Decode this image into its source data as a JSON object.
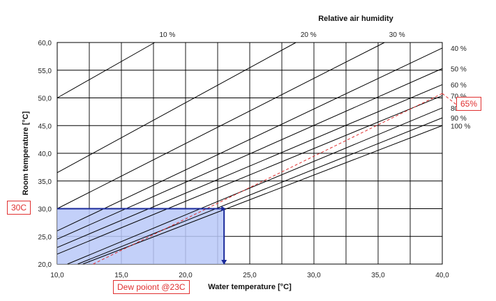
{
  "chart_data": {
    "type": "line",
    "title": "Relative air humidity",
    "xlabel": "Water temperature [°C]",
    "ylabel": "Room temperature [°C]",
    "xlim": [
      10,
      40
    ],
    "ylim": [
      20,
      60
    ],
    "x_ticks": [
      "10,0",
      "15,0",
      "20,0",
      "25,0",
      "30,0",
      "35,0",
      "40,0"
    ],
    "y_ticks": [
      "20,0",
      "25,0",
      "30,0",
      "35,0",
      "40,0",
      "45,0",
      "50,0",
      "55,0",
      "60,0"
    ],
    "grid": true,
    "series": [
      {
        "name": "10 %",
        "x": [
          10,
          17.6
        ],
        "y": [
          50,
          60
        ]
      },
      {
        "name": "20 %",
        "x": [
          10,
          28.6
        ],
        "y": [
          36.5,
          60
        ]
      },
      {
        "name": "30 %",
        "x": [
          10,
          35.5
        ],
        "y": [
          30,
          60
        ]
      },
      {
        "name": "40 %",
        "x": [
          10,
          40
        ],
        "y": [
          26,
          59
        ]
      },
      {
        "name": "50 %",
        "x": [
          10,
          40
        ],
        "y": [
          24.5,
          55.3
        ]
      },
      {
        "name": "60 %",
        "x": [
          10,
          40
        ],
        "y": [
          23,
          52.4
        ]
      },
      {
        "name": "70 %",
        "x": [
          10,
          40
        ],
        "y": [
          21.8,
          50.4
        ]
      },
      {
        "name": "80 %",
        "x": [
          10.8,
          40
        ],
        "y": [
          20,
          48.2
        ]
      },
      {
        "name": "90 %",
        "x": [
          11.6,
          40
        ],
        "y": [
          20,
          46.4
        ]
      },
      {
        "name": "100 %",
        "x": [
          12,
          40
        ],
        "y": [
          20,
          45
        ]
      }
    ],
    "highlight": {
      "line_65": {
        "x": [
          12.8,
          40
        ],
        "y": [
          20,
          50.8
        ]
      },
      "region": {
        "x": [
          10,
          23
        ],
        "y": [
          20,
          30
        ]
      },
      "color": "#e03030",
      "fill": "#b8c8f8",
      "stroke": "#1a2a9a"
    },
    "annotations": {
      "room_temp": "30C",
      "humidity": "65%",
      "dew_point": "Dew poiont @23C"
    }
  }
}
